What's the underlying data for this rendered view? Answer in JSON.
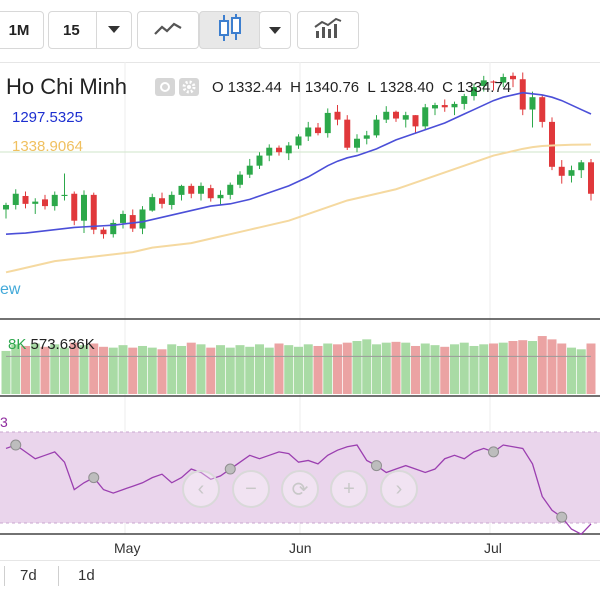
{
  "toolbar": {
    "interval_1": "1M",
    "interval_2": "15",
    "dropdown_icon": "chevron-down-icon",
    "line_chart_icon": "line-chart-icon",
    "candlestick_icon": "candlestick-icon",
    "indicators_icon": "bar-line-chart-icon"
  },
  "legend": {
    "title": "Ho Chi Minh",
    "open_label": "O",
    "open": "1332.44",
    "high_label": "H",
    "high": "1340.76",
    "low_label": "L",
    "low": "1328.40",
    "close_label": "C",
    "close": "1334.74",
    "ma1": "1297.5325",
    "ma2": "1338.9064",
    "view": "ew"
  },
  "volume": {
    "label_partial": "8K",
    "value": "573.636K"
  },
  "rsi": {
    "label_partial": "3"
  },
  "x_axis": [
    "May",
    "Jun",
    "Jul"
  ],
  "ranges": [
    "7d",
    "1d"
  ],
  "colors": {
    "up": "#2ca84a",
    "down": "#e0383b",
    "ma1": "#4b4fd8",
    "ma2": "#f5d9a0",
    "rsi_line": "#9b3fb0",
    "rsi_band": "#ead5ec"
  },
  "chart_data": {
    "type": "candlestick",
    "price_ylim": [
      1200,
      1380
    ],
    "candles": [
      [
        1284,
        1290,
        1276,
        1288
      ],
      [
        1288,
        1302,
        1284,
        1298
      ],
      [
        1296,
        1300,
        1285,
        1289
      ],
      [
        1289,
        1294,
        1280,
        1291
      ],
      [
        1293,
        1297,
        1284,
        1287
      ],
      [
        1287,
        1300,
        1283,
        1297
      ],
      [
        1296,
        1316,
        1292,
        1297
      ],
      [
        1298,
        1300,
        1270,
        1274
      ],
      [
        1274,
        1301,
        1263,
        1297
      ],
      [
        1297,
        1299,
        1262,
        1266
      ],
      [
        1266,
        1268,
        1258,
        1262
      ],
      [
        1262,
        1275,
        1259,
        1272
      ],
      [
        1272,
        1283,
        1267,
        1280
      ],
      [
        1279,
        1284,
        1264,
        1267
      ],
      [
        1267,
        1287,
        1262,
        1284
      ],
      [
        1283,
        1298,
        1282,
        1295
      ],
      [
        1294,
        1299,
        1285,
        1289
      ],
      [
        1288,
        1300,
        1284,
        1297
      ],
      [
        1297,
        1306,
        1292,
        1305
      ],
      [
        1305,
        1307,
        1294,
        1298
      ],
      [
        1298,
        1308,
        1292,
        1305
      ],
      [
        1303,
        1306,
        1291,
        1294
      ],
      [
        1294,
        1301,
        1288,
        1297
      ],
      [
        1297,
        1308,
        1293,
        1306
      ],
      [
        1306,
        1318,
        1303,
        1315
      ],
      [
        1315,
        1329,
        1312,
        1323
      ],
      [
        1323,
        1335,
        1320,
        1332
      ],
      [
        1332,
        1342,
        1327,
        1339
      ],
      [
        1339,
        1341,
        1332,
        1335
      ],
      [
        1334,
        1344,
        1328,
        1341
      ],
      [
        1341,
        1351,
        1338,
        1349
      ],
      [
        1349,
        1362,
        1345,
        1357
      ],
      [
        1357,
        1361,
        1350,
        1352
      ],
      [
        1352,
        1374,
        1348,
        1370
      ],
      [
        1371,
        1377,
        1359,
        1364
      ],
      [
        1364,
        1368,
        1337,
        1339
      ],
      [
        1339,
        1351,
        1335,
        1347
      ],
      [
        1347,
        1354,
        1342,
        1350
      ],
      [
        1350,
        1368,
        1348,
        1364
      ],
      [
        1364,
        1376,
        1361,
        1371
      ],
      [
        1371,
        1372,
        1362,
        1365
      ],
      [
        1364,
        1371,
        1357,
        1368
      ],
      [
        1368,
        1368,
        1352,
        1358
      ],
      [
        1358,
        1378,
        1355,
        1375
      ],
      [
        1374,
        1379,
        1368,
        1377
      ],
      [
        1377,
        1382,
        1371,
        1375
      ],
      [
        1375,
        1380,
        1368,
        1378
      ],
      [
        1378,
        1387,
        1373,
        1385
      ],
      [
        1385,
        1396,
        1381,
        1393
      ],
      [
        1394,
        1403,
        1389,
        1399
      ],
      [
        1398,
        1399,
        1390,
        1397
      ],
      [
        1397,
        1405,
        1393,
        1402
      ],
      [
        1403,
        1406,
        1393,
        1400
      ],
      [
        1400,
        1406,
        1368,
        1373
      ],
      [
        1373,
        1389,
        1357,
        1384
      ],
      [
        1384,
        1386,
        1357,
        1362
      ],
      [
        1362,
        1366,
        1319,
        1322
      ],
      [
        1322,
        1328,
        1307,
        1314
      ],
      [
        1314,
        1323,
        1308,
        1319
      ],
      [
        1319,
        1328,
        1312,
        1326
      ],
      [
        1326,
        1329,
        1292,
        1298
      ]
    ],
    "ma1": [
      1262,
      1262.5,
      1263,
      1264,
      1265,
      1266,
      1267,
      1268,
      1268.5,
      1269,
      1269.5,
      1270,
      1271,
      1272,
      1273,
      1275,
      1277,
      1279,
      1281,
      1283,
      1285,
      1287,
      1288,
      1289,
      1291,
      1293,
      1296,
      1299,
      1302,
      1305,
      1309,
      1313,
      1318,
      1323,
      1327,
      1330,
      1332,
      1335,
      1338,
      1342,
      1346,
      1349,
      1352,
      1355,
      1358,
      1361,
      1365,
      1369,
      1373,
      1377,
      1381,
      1384,
      1386,
      1388,
      1387,
      1386,
      1384,
      1381,
      1377,
      1373,
      1369
    ],
    "ma2": [
      1228,
      1230,
      1232,
      1234,
      1236,
      1238,
      1239,
      1240,
      1241,
      1242,
      1243,
      1244,
      1245,
      1246,
      1248,
      1250,
      1251,
      1252,
      1253,
      1254,
      1256,
      1258,
      1260,
      1262,
      1264,
      1266,
      1268,
      1270,
      1272,
      1274,
      1277,
      1280,
      1283,
      1286,
      1289,
      1292,
      1294,
      1296,
      1298,
      1300,
      1302,
      1305,
      1308,
      1311,
      1314,
      1317,
      1320,
      1323,
      1326,
      1329,
      1332,
      1334,
      1336,
      1338,
      1339.5,
      1340.5,
      1341,
      1341.3,
      1341.6,
      1341.8,
      1341.9
    ],
    "volume_ylim": [
      0,
      1000
    ],
    "volumes": [
      520,
      600,
      580,
      610,
      570,
      600,
      560,
      620,
      590,
      610,
      570,
      560,
      590,
      560,
      580,
      560,
      540,
      600,
      580,
      620,
      600,
      560,
      590,
      560,
      590,
      570,
      600,
      560,
      610,
      590,
      570,
      600,
      580,
      610,
      600,
      620,
      640,
      660,
      600,
      620,
      630,
      620,
      580,
      610,
      590,
      570,
      600,
      620,
      580,
      600,
      610,
      620,
      640,
      650,
      640,
      700,
      660,
      610,
      560,
      540,
      610
    ],
    "volume_avg": [
      600,
      600,
      600,
      600,
      600,
      600,
      600,
      600,
      600,
      600,
      600,
      600,
      600,
      600,
      600,
      600,
      600,
      600,
      600,
      600,
      600,
      600,
      600,
      600,
      600,
      600,
      600,
      600,
      600,
      600,
      600,
      600,
      600,
      600,
      600,
      600,
      600,
      600,
      600,
      600,
      600,
      600,
      600,
      600,
      600,
      600,
      600,
      600,
      600,
      600,
      600,
      600,
      600,
      600,
      600,
      600,
      600,
      600,
      600,
      600,
      600
    ],
    "rsi_ylim": [
      0,
      100
    ],
    "rsi_band": [
      30,
      70
    ],
    "rsi": [
      72,
      74,
      70,
      66,
      68,
      70,
      64,
      48,
      52,
      55,
      48,
      46,
      48,
      50,
      52,
      55,
      57,
      52,
      55,
      60,
      58,
      54,
      56,
      60,
      64,
      68,
      66,
      68,
      70,
      69,
      64,
      65,
      63,
      68,
      71,
      73,
      74,
      65,
      62,
      58,
      60,
      62,
      60,
      58,
      60,
      66,
      68,
      66,
      70,
      72,
      70,
      74,
      73,
      72,
      63,
      44,
      36,
      32,
      25,
      22,
      28
    ],
    "rsi_markers": [
      1,
      9,
      23,
      38,
      50,
      57
    ]
  }
}
